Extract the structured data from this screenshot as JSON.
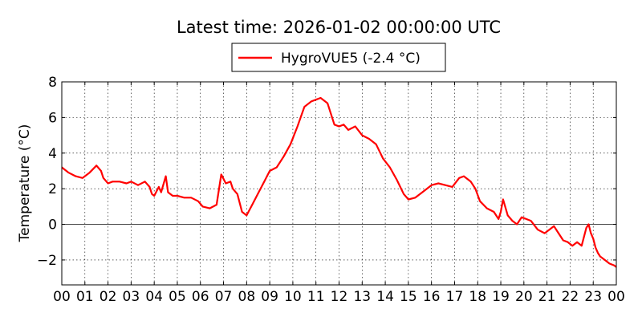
{
  "chart_data": {
    "type": "line",
    "title": "Latest time: 2026-01-02 00:00:00 UTC",
    "xlabel": "",
    "ylabel": "Temperature (°C)",
    "xlim": [
      0,
      24
    ],
    "ylim": [
      -3.4,
      8
    ],
    "grid": true,
    "legend_position": "top-center",
    "x_tick_values": [
      0,
      1,
      2,
      3,
      4,
      5,
      6,
      7,
      8,
      9,
      10,
      11,
      12,
      13,
      14,
      15,
      16,
      17,
      18,
      19,
      20,
      21,
      22,
      23,
      24
    ],
    "x_tick_labels": [
      "00",
      "01",
      "02",
      "03",
      "04",
      "05",
      "06",
      "07",
      "08",
      "09",
      "10",
      "11",
      "12",
      "13",
      "14",
      "15",
      "16",
      "17",
      "18",
      "19",
      "20",
      "21",
      "22",
      "23",
      "00"
    ],
    "y_ticks": [
      -2,
      0,
      2,
      4,
      6,
      8
    ],
    "y_tick_labels": [
      "−2",
      "0",
      "2",
      "4",
      "6",
      "8"
    ],
    "reference_line_y": 0,
    "series": [
      {
        "name": "HygroVUE5 (-2.4 °C)",
        "color": "#ff0000",
        "x": [
          0,
          0.3,
          0.6,
          0.9,
          1.2,
          1.5,
          1.7,
          1.8,
          2.0,
          2.2,
          2.5,
          2.8,
          3.0,
          3.3,
          3.6,
          3.8,
          3.9,
          4.0,
          4.2,
          4.3,
          4.5,
          4.6,
          4.8,
          5.0,
          5.3,
          5.6,
          5.9,
          6.1,
          6.4,
          6.7,
          6.9,
          7.1,
          7.3,
          7.4,
          7.6,
          7.8,
          8.0,
          8.2,
          8.4,
          8.6,
          8.8,
          9.0,
          9.3,
          9.6,
          9.9,
          10.2,
          10.5,
          10.8,
          11.0,
          11.2,
          11.5,
          11.8,
          12.0,
          12.2,
          12.4,
          12.7,
          13.0,
          13.3,
          13.6,
          13.9,
          14.2,
          14.5,
          14.8,
          15.0,
          15.3,
          15.6,
          15.8,
          16.0,
          16.3,
          16.6,
          16.9,
          17.2,
          17.4,
          17.7,
          17.9,
          18.1,
          18.4,
          18.7,
          18.9,
          19.0,
          19.1,
          19.3,
          19.5,
          19.7,
          19.9,
          20.1,
          20.3,
          20.6,
          20.9,
          21.1,
          21.3,
          21.5,
          21.7,
          21.9,
          22.1,
          22.3,
          22.5,
          22.7,
          22.8,
          22.9,
          23.0,
          23.1,
          23.2,
          23.3,
          23.5,
          23.7,
          23.9,
          24.0
        ],
        "values": [
          3.2,
          2.9,
          2.7,
          2.6,
          2.9,
          3.3,
          3.0,
          2.6,
          2.3,
          2.4,
          2.4,
          2.3,
          2.4,
          2.2,
          2.4,
          2.1,
          1.7,
          1.6,
          2.1,
          1.8,
          2.7,
          1.8,
          1.6,
          1.6,
          1.5,
          1.5,
          1.3,
          1.0,
          0.9,
          1.1,
          2.8,
          2.3,
          2.4,
          2.0,
          1.7,
          0.7,
          0.5,
          1.0,
          1.5,
          2.0,
          2.5,
          3.0,
          3.2,
          3.8,
          4.5,
          5.5,
          6.6,
          6.9,
          7.0,
          7.1,
          6.8,
          5.6,
          5.5,
          5.6,
          5.3,
          5.5,
          5.0,
          4.8,
          4.5,
          3.7,
          3.2,
          2.5,
          1.7,
          1.4,
          1.5,
          1.8,
          2.0,
          2.2,
          2.3,
          2.2,
          2.1,
          2.6,
          2.7,
          2.4,
          2.0,
          1.3,
          0.9,
          0.7,
          0.3,
          0.7,
          1.4,
          0.5,
          0.2,
          0.0,
          0.4,
          0.3,
          0.2,
          -0.3,
          -0.5,
          -0.3,
          -0.1,
          -0.5,
          -0.9,
          -1.0,
          -1.2,
          -1.0,
          -1.2,
          -0.2,
          0.0,
          -0.5,
          -0.8,
          -1.3,
          -1.6,
          -1.8,
          -2.0,
          -2.2,
          -2.3,
          -2.4
        ]
      }
    ]
  }
}
